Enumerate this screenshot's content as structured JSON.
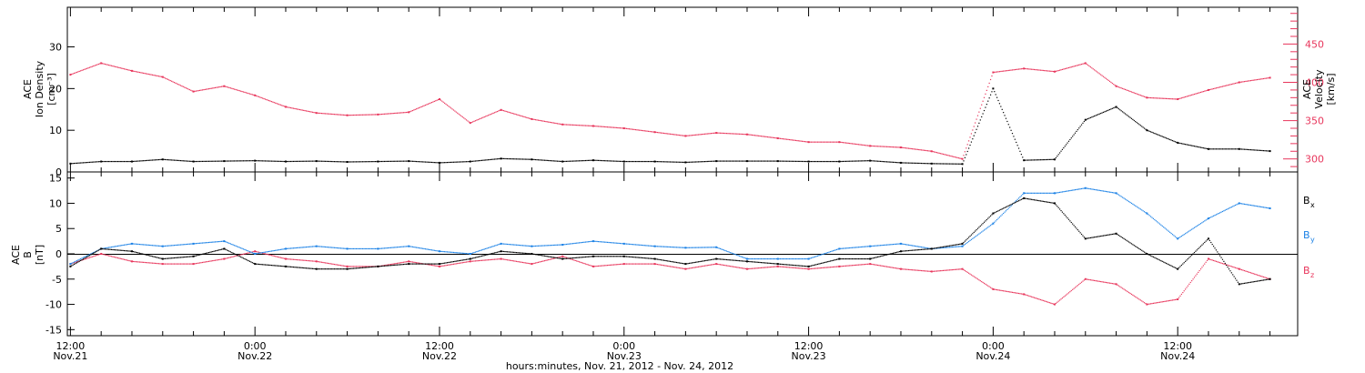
{
  "chart_data": [
    {
      "type": "scatter",
      "panel": "top",
      "xlabel": "hours:minutes, Nov. 21, 2012 - Nov. 24, 2012",
      "x_ticks": [
        {
          "time": "12:00",
          "date": "Nov.21",
          "hours": 12
        },
        {
          "time": "0:00",
          "date": "Nov.22",
          "hours": 24
        },
        {
          "time": "12:00",
          "date": "Nov.22",
          "hours": 36
        },
        {
          "time": "0:00",
          "date": "Nov.23",
          "hours": 48
        },
        {
          "time": "12:00",
          "date": "Nov.23",
          "hours": 60
        },
        {
          "time": "0:00",
          "date": "Nov.24",
          "hours": 72
        },
        {
          "time": "12:00",
          "date": "Nov.24",
          "hours": 84
        }
      ],
      "xlim_hours": [
        11.8,
        91.8
      ],
      "y_left": {
        "label_lines": [
          "ACE",
          "Ion Density",
          "[cm⁻³]"
        ],
        "ticks": [
          0,
          10,
          20,
          30
        ],
        "ylim": [
          0,
          39.5
        ],
        "color": "#000000"
      },
      "y_right": {
        "label_lines": [
          "ACE",
          "Velocity",
          "[km/s]"
        ],
        "ticks": [
          300,
          350,
          400,
          450
        ],
        "ylim": [
          283,
          498
        ],
        "color": "#e8365c"
      },
      "series": [
        {
          "axis": "left",
          "color": "#000000",
          "x_hours": [
            12,
            14,
            16,
            18,
            20,
            22,
            24,
            26,
            28,
            30,
            32,
            34,
            36,
            38,
            40,
            42,
            44,
            46,
            48,
            50,
            52,
            54,
            56,
            58,
            60,
            62,
            64,
            66,
            68,
            70,
            72,
            74,
            76,
            78,
            80,
            82,
            84,
            86,
            88,
            90
          ],
          "values": [
            2,
            2.5,
            2.5,
            3,
            2.5,
            2.6,
            2.7,
            2.5,
            2.6,
            2.4,
            2.5,
            2.6,
            2.2,
            2.5,
            3.2,
            3,
            2.5,
            2.8,
            2.5,
            2.5,
            2.3,
            2.6,
            2.6,
            2.6,
            2.5,
            2.5,
            2.7,
            2.2,
            2.0,
            1.9,
            20,
            2.8,
            3,
            12.5,
            15.6,
            10,
            7,
            5.5,
            5.5,
            5
          ]
        },
        {
          "axis": "right",
          "color": "#e8365c",
          "x_hours": [
            12,
            14,
            16,
            18,
            20,
            22,
            24,
            26,
            28,
            30,
            32,
            34,
            36,
            38,
            40,
            42,
            44,
            46,
            48,
            50,
            52,
            54,
            56,
            58,
            60,
            62,
            64,
            66,
            68,
            70,
            72,
            74,
            76,
            78,
            80,
            82,
            84,
            86,
            88,
            90
          ],
          "values": [
            410,
            425,
            415,
            407,
            388,
            395,
            383,
            368,
            360,
            357,
            358,
            361,
            378,
            347,
            364,
            352,
            345,
            343,
            340,
            335,
            330,
            334,
            332,
            327,
            322,
            322,
            317,
            315,
            310,
            300,
            413,
            418,
            414,
            425,
            395,
            380,
            378,
            390,
            400,
            406
          ]
        }
      ]
    },
    {
      "type": "scatter",
      "panel": "bottom",
      "y_left": {
        "label_lines": [
          "ACE",
          "B",
          "[nT]"
        ],
        "ticks": [
          -15,
          -10,
          -5,
          0,
          5,
          10,
          15
        ],
        "ylim": [
          -16.2,
          16.2
        ]
      },
      "legend": [
        "Bx",
        "By",
        "Bz"
      ],
      "series": [
        {
          "name": "Bx",
          "color": "#000000",
          "x_hours": [
            12,
            14,
            16,
            18,
            20,
            22,
            24,
            26,
            28,
            30,
            32,
            34,
            36,
            38,
            40,
            42,
            44,
            46,
            48,
            50,
            52,
            54,
            56,
            58,
            60,
            62,
            64,
            66,
            68,
            70,
            72,
            74,
            76,
            78,
            80,
            82,
            84,
            86,
            88,
            90
          ],
          "values": [
            -2.5,
            1,
            0.5,
            -1,
            -0.5,
            1,
            -2,
            -2.5,
            -3,
            -3,
            -2.5,
            -2,
            -2,
            -1,
            0.5,
            0,
            -1,
            -0.5,
            -0.5,
            -1,
            -2,
            -1,
            -1.5,
            -2,
            -2.5,
            -1,
            -1,
            0.5,
            1,
            2,
            8,
            11,
            10,
            3,
            4,
            0,
            -3,
            3,
            -6,
            -5
          ]
        },
        {
          "name": "By",
          "color": "#1c82e6",
          "x_hours": [
            12,
            14,
            16,
            18,
            20,
            22,
            24,
            26,
            28,
            30,
            32,
            34,
            36,
            38,
            40,
            42,
            44,
            46,
            48,
            50,
            52,
            54,
            56,
            58,
            60,
            62,
            64,
            66,
            68,
            70,
            72,
            74,
            76,
            78,
            80,
            82,
            84,
            86,
            88,
            90
          ],
          "values": [
            -2,
            1,
            2,
            1.5,
            2,
            2.5,
            0,
            1,
            1.5,
            1,
            1,
            1.5,
            0.5,
            0,
            2,
            1.5,
            1.8,
            2.5,
            2,
            1.5,
            1.2,
            1.3,
            -1,
            -1,
            -1,
            1,
            1.5,
            2,
            1,
            1.5,
            6,
            12,
            12,
            13,
            12,
            8,
            3,
            7,
            10,
            9
          ]
        },
        {
          "name": "Bz",
          "color": "#e8365c",
          "x_hours": [
            12,
            14,
            16,
            18,
            20,
            22,
            24,
            26,
            28,
            30,
            32,
            34,
            36,
            38,
            40,
            42,
            44,
            46,
            48,
            50,
            52,
            54,
            56,
            58,
            60,
            62,
            64,
            66,
            68,
            70,
            72,
            74,
            76,
            78,
            80,
            82,
            84,
            86,
            88,
            90
          ],
          "values": [
            -2,
            0,
            -1.5,
            -2,
            -2,
            -1,
            0.5,
            -1,
            -1.5,
            -2.5,
            -2.5,
            -1.5,
            -2.5,
            -1.5,
            -1,
            -2,
            -0.5,
            -2.5,
            -2,
            -2,
            -3,
            -2,
            -3,
            -2.5,
            -3,
            -2.5,
            -2,
            -3,
            -3.5,
            -3,
            -7,
            -8,
            -10,
            -5,
            -6,
            -10,
            -9,
            -1,
            -3,
            -5
          ]
        }
      ]
    }
  ]
}
